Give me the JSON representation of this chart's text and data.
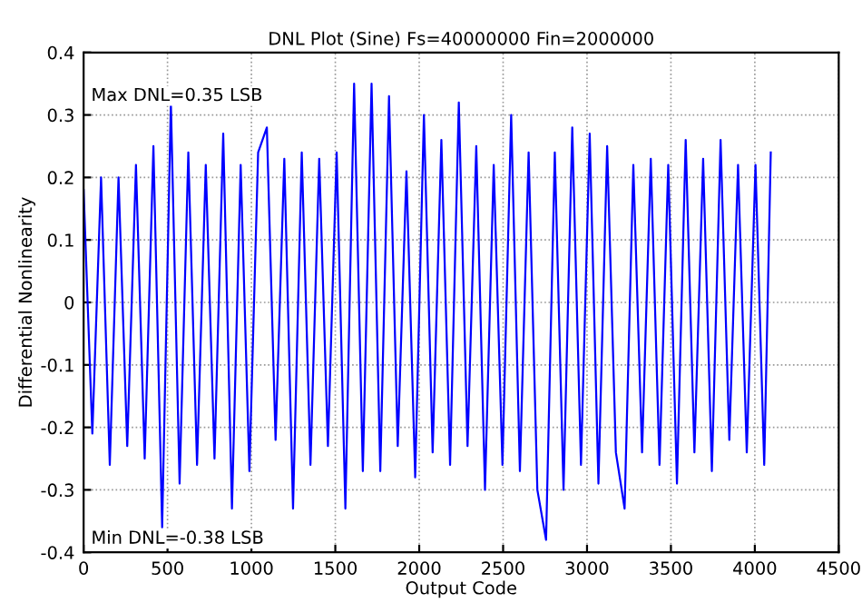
{
  "chart_data": {
    "type": "line",
    "title": "DNL Plot (Sine) Fs=40000000 Fin=2000000",
    "xlabel": "Output Code",
    "ylabel": "Differential Nonlinearity",
    "annotations": [
      "Max DNL=0.35 LSB",
      "Min DNL=-0.38 LSB"
    ],
    "x": [
      0,
      52,
      104,
      156,
      208,
      260,
      312,
      364,
      416,
      468,
      520,
      572,
      624,
      676,
      728,
      780,
      832,
      884,
      936,
      988,
      1040,
      1092,
      1144,
      1196,
      1248,
      1300,
      1352,
      1404,
      1456,
      1508,
      1560,
      1612,
      1664,
      1716,
      1768,
      1820,
      1872,
      1924,
      1976,
      2028,
      2080,
      2132,
      2184,
      2236,
      2288,
      2340,
      2392,
      2444,
      2496,
      2548,
      2600,
      2652,
      2704,
      2756,
      2808,
      2860,
      2912,
      2964,
      3016,
      3068,
      3120,
      3172,
      3224,
      3276,
      3328,
      3380,
      3432,
      3484,
      3536,
      3588,
      3640,
      3692,
      3744,
      3796,
      3848,
      3900,
      3952,
      4004,
      4056,
      4095
    ],
    "series": [
      {
        "color": "#0000ff",
        "values": [
          0.18,
          -0.21,
          0.2,
          -0.26,
          0.2,
          -0.23,
          0.22,
          -0.25,
          0.25,
          -0.36,
          0.32,
          -0.29,
          0.24,
          -0.26,
          0.22,
          -0.25,
          0.27,
          -0.33,
          0.22,
          -0.27,
          0.24,
          0.28,
          -0.22,
          0.23,
          -0.33,
          0.24,
          -0.26,
          0.23,
          -0.23,
          0.24,
          -0.33,
          0.35,
          -0.27,
          0.35,
          -0.27,
          0.33,
          -0.23,
          0.21,
          -0.28,
          0.3,
          -0.24,
          0.26,
          -0.26,
          0.32,
          -0.23,
          0.25,
          -0.3,
          0.22,
          -0.26,
          0.3,
          -0.27,
          0.24,
          -0.3,
          -0.38,
          0.24,
          -0.3,
          0.28,
          -0.26,
          0.27,
          -0.29,
          0.25,
          -0.24,
          -0.33,
          0.22,
          -0.24,
          0.23,
          -0.26,
          0.22,
          -0.29,
          0.26,
          -0.24,
          0.23,
          -0.27,
          0.26,
          -0.22,
          0.22,
          -0.24,
          0.22,
          -0.26,
          0.24
        ]
      }
    ],
    "xlim": [
      0,
      4500
    ],
    "xticks": [
      0,
      500,
      1000,
      1500,
      2000,
      2500,
      3000,
      3500,
      4000,
      4500
    ],
    "ylim": [
      -0.4,
      0.4
    ],
    "yticks": [
      -0.4,
      -0.3,
      -0.2,
      -0.1,
      0,
      0.1,
      0.2,
      0.3,
      0.4
    ],
    "grid": true,
    "line_style": "solid",
    "marker": "none",
    "legend": false
  }
}
